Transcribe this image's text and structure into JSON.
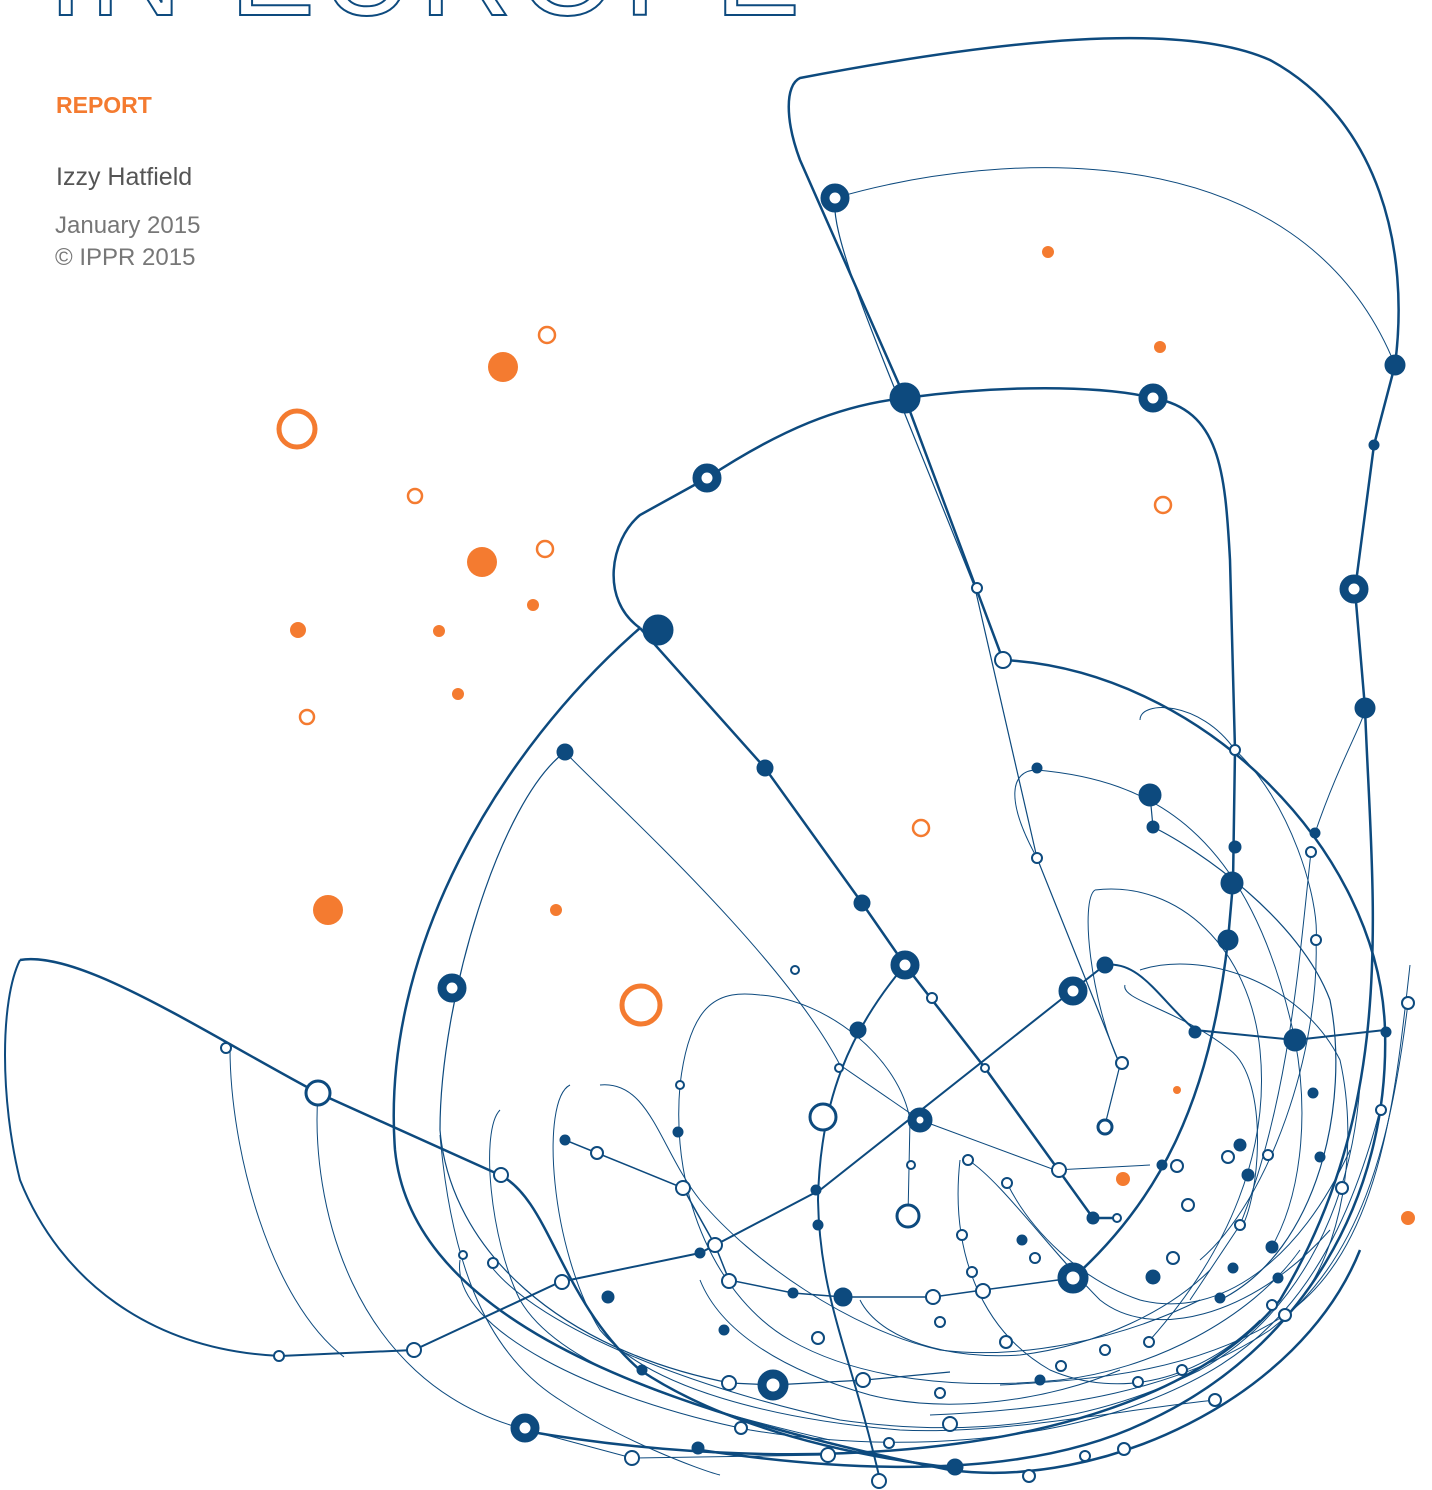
{
  "title": "IN EUROPE",
  "label": "REPORT",
  "author": "Izzy Hatfield",
  "date": "January 2015",
  "copyright": "© IPPR 2015"
}
